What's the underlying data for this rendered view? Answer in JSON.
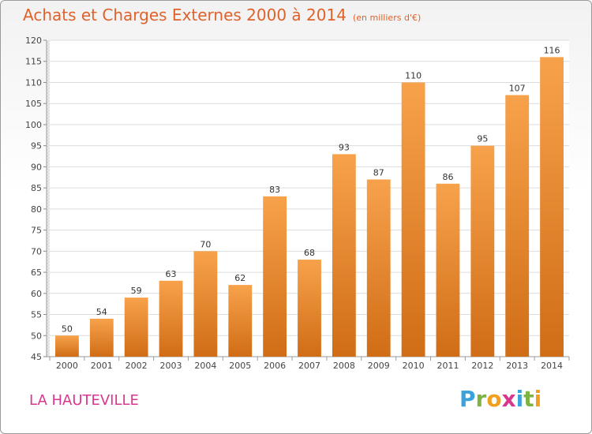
{
  "header": {
    "title": "Achats et Charges Externes 2000 à 2014",
    "subtitle": "(en milliers d'€)"
  },
  "footer": {
    "commune": "LA HAUTEVILLE",
    "logo_letters": [
      "P",
      "r",
      "o",
      "x",
      "i",
      "t",
      "i"
    ],
    "logo_colors": [
      "#3aa3dc",
      "#7cb342",
      "#f0a01e",
      "#d9368e",
      "#3aa3dc",
      "#7cb342",
      "#f0a01e"
    ]
  },
  "chart_data": {
    "type": "bar",
    "categories": [
      "2000",
      "2001",
      "2002",
      "2003",
      "2004",
      "2005",
      "2006",
      "2007",
      "2008",
      "2009",
      "2010",
      "2011",
      "2012",
      "2013",
      "2014"
    ],
    "values": [
      50,
      54,
      59,
      63,
      70,
      62,
      83,
      68,
      93,
      87,
      110,
      86,
      95,
      107,
      116
    ],
    "data_labels": [
      "50",
      "54",
      "59",
      "63",
      "70",
      "62",
      "83",
      "68",
      "93",
      "87",
      "110",
      "86",
      "95",
      "107",
      "116"
    ],
    "ylim": [
      45,
      120
    ],
    "yticks": [
      45,
      50,
      55,
      60,
      65,
      70,
      75,
      80,
      85,
      90,
      95,
      100,
      105,
      110,
      115,
      120
    ],
    "grid": true,
    "bar_color_top": "#f7a24b",
    "bar_color_bottom": "#d06d16"
  }
}
